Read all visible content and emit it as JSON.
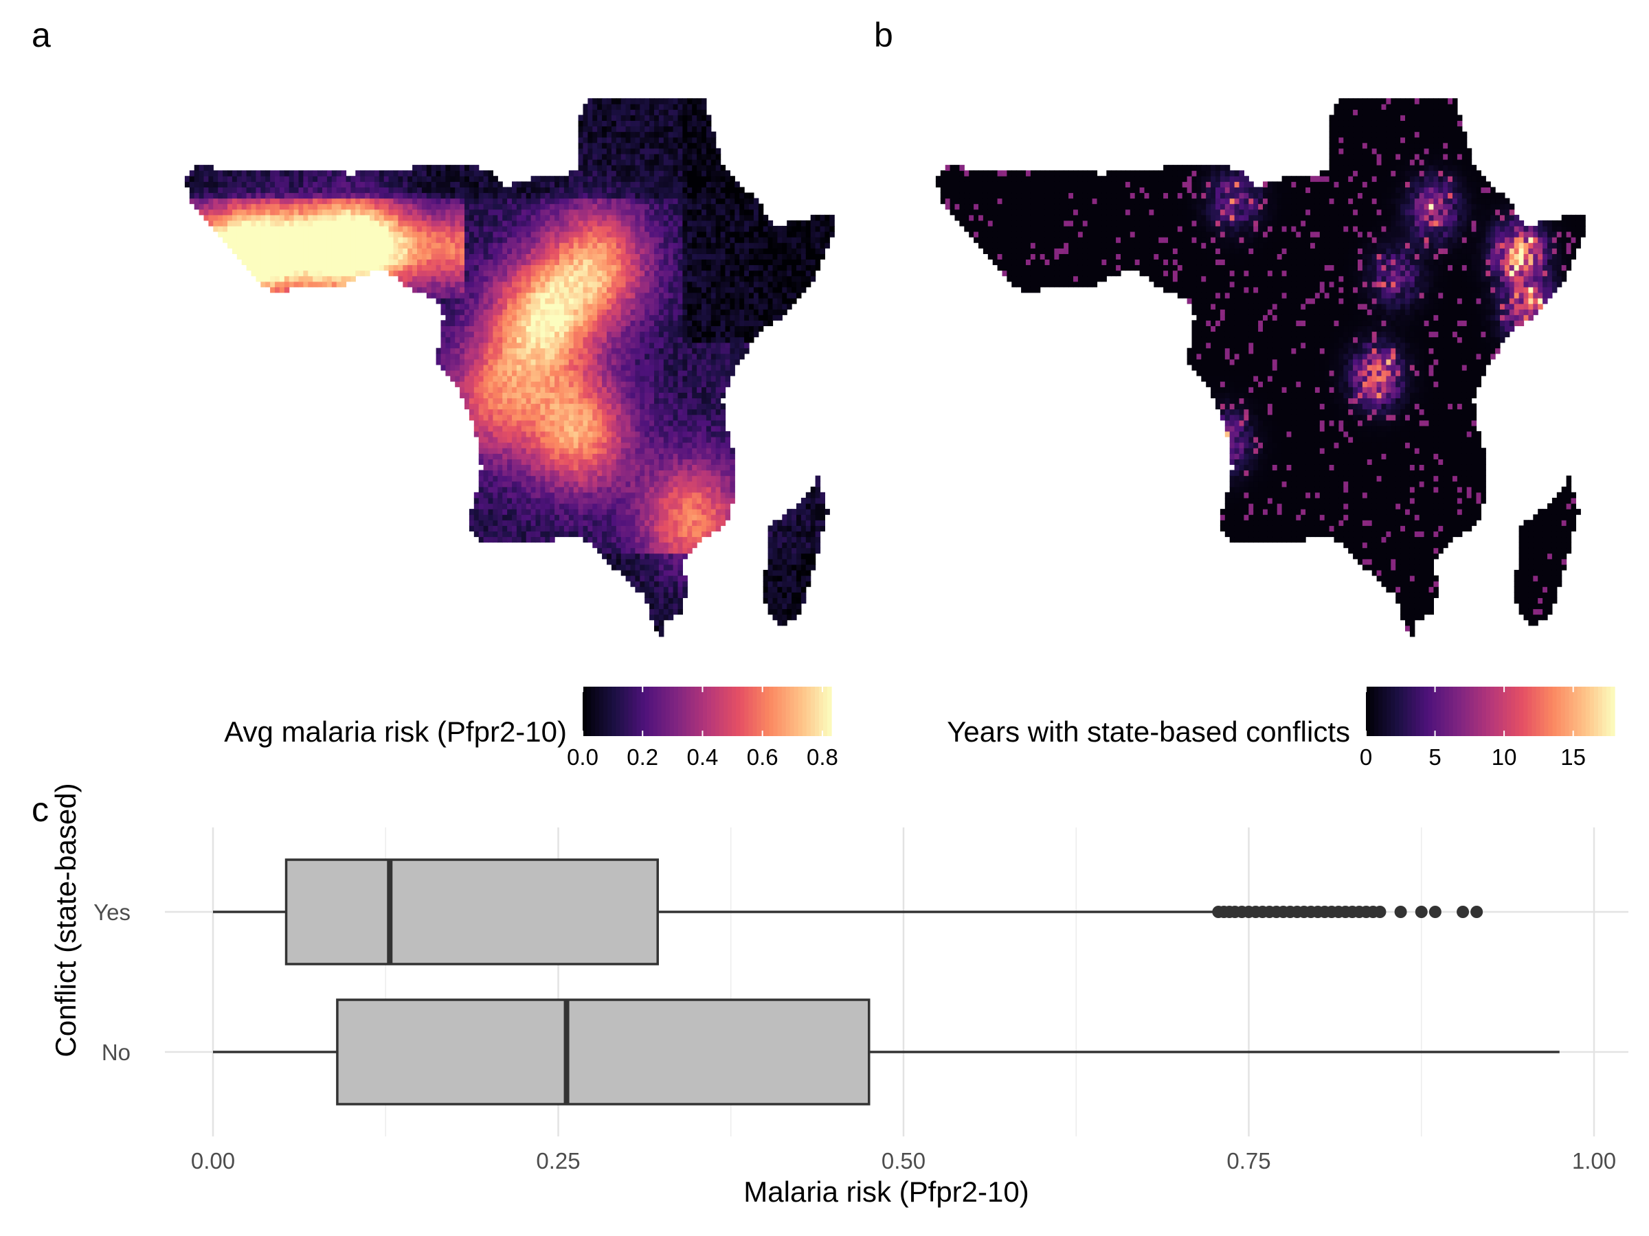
{
  "panels": {
    "a": {
      "letter": "a"
    },
    "b": {
      "letter": "b"
    },
    "c": {
      "letter": "c"
    }
  },
  "colormap": "magma",
  "chart_data": [
    {
      "panel": "a",
      "type": "heatmap",
      "legend": {
        "title": "Avg malaria risk (Pfpr2-10)",
        "range": [
          0,
          0.83
        ],
        "ticks": [
          0.0,
          0.2,
          0.4,
          0.6,
          0.8
        ],
        "tick_labels": [
          "0.0",
          "0.2",
          "0.4",
          "0.6",
          "0.8"
        ],
        "placement": "bottom"
      },
      "hotspots": [
        {
          "lon": 20,
          "lat": 2,
          "value": 0.8
        },
        {
          "lon": 26,
          "lat": 7,
          "value": 0.7
        },
        {
          "lon": 0,
          "lat": 9,
          "value": 0.75
        },
        {
          "lon": -10,
          "lat": 8,
          "value": 0.7
        },
        {
          "lon": 24,
          "lat": -8,
          "value": 0.72
        },
        {
          "lon": 36,
          "lat": -16,
          "value": 0.65
        },
        {
          "lon": 15,
          "lat": -5,
          "value": 0.55
        }
      ]
    },
    {
      "panel": "b",
      "type": "heatmap",
      "legend": {
        "title": "Years with state-based conflicts",
        "range": [
          0,
          18
        ],
        "ticks": [
          0,
          5,
          10,
          15
        ],
        "tick_labels": [
          "0",
          "5",
          "10",
          "15"
        ],
        "placement": "bottom"
      },
      "hotspots": [
        {
          "lon": 44,
          "lat": 8,
          "value": 16
        },
        {
          "lon": 45,
          "lat": 3,
          "value": 13
        },
        {
          "lon": 29,
          "lat": -3,
          "value": 12
        },
        {
          "lon": 35,
          "lat": 12,
          "value": 9
        },
        {
          "lon": 14,
          "lat": 13,
          "value": 7
        },
        {
          "lon": 31,
          "lat": 6,
          "value": 6
        },
        {
          "lon": 13,
          "lat": -9,
          "value": 8
        }
      ]
    },
    {
      "panel": "c",
      "type": "box",
      "xlabel": "Malaria risk (Pfpr2-10)",
      "ylabel": "Conflict (state-based)",
      "xlim": [
        0,
        1
      ],
      "xticks": [
        0.0,
        0.25,
        0.5,
        0.75,
        1.0
      ],
      "xtick_labels": [
        "0.00",
        "0.25",
        "0.50",
        "0.75",
        "1.00"
      ],
      "categories": [
        "Yes",
        "No"
      ],
      "series": [
        {
          "category": "Yes",
          "whisker_low": 0.0,
          "q1": 0.053,
          "median": 0.128,
          "q3": 0.322,
          "whisker_high": 0.725,
          "outliers": [
            0.728,
            0.732,
            0.736,
            0.74,
            0.745,
            0.75,
            0.755,
            0.76,
            0.765,
            0.77,
            0.775,
            0.78,
            0.785,
            0.79,
            0.795,
            0.8,
            0.805,
            0.81,
            0.815,
            0.82,
            0.825,
            0.83,
            0.835,
            0.84,
            0.845,
            0.86,
            0.875,
            0.885,
            0.905,
            0.915
          ]
        },
        {
          "category": "No",
          "whisker_low": 0.0,
          "q1": 0.09,
          "median": 0.256,
          "q3": 0.475,
          "whisker_high": 0.975,
          "outliers": []
        }
      ],
      "grid": true
    }
  ]
}
